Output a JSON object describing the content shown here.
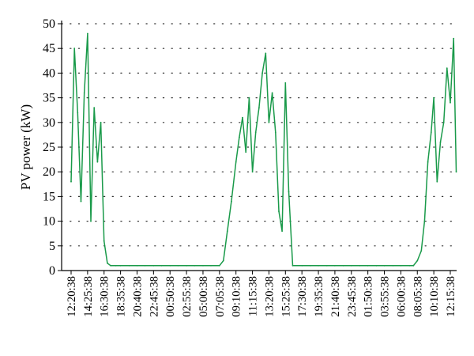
{
  "chart_data": {
    "type": "line",
    "title": "",
    "xlabel": "",
    "ylabel": "PV power (kW)",
    "ylim": [
      0,
      50
    ],
    "yticks": [
      0,
      5,
      10,
      15,
      20,
      25,
      30,
      35,
      40,
      45,
      50
    ],
    "x_tick_labels": [
      "12:20:38",
      "14:25:38",
      "16:30:38",
      "18:35:38",
      "20:40:38",
      "22:45:38",
      "00:50:38",
      "02:55:38",
      "05:00:38",
      "07:05:38",
      "09:10:38",
      "11:15:38",
      "13:20:38",
      "15:25:38",
      "17:30:38",
      "19:35:38",
      "21:40:38",
      "23:45:38",
      "01:50:38",
      "03:55:38",
      "06:00:38",
      "08:05:38",
      "10:10:38",
      "12:15:38"
    ],
    "grid": true,
    "series": [
      {
        "color": "#1a9a4a",
        "x": [
          "12:20:38",
          "12:45:38",
          "13:10:38",
          "13:35:38",
          "14:00:38",
          "14:25:38",
          "14:50:38",
          "15:15:38",
          "15:40:38",
          "16:05:38",
          "16:30:38",
          "16:55:38",
          "17:20:38",
          "18:00:38",
          "18:35:38",
          "19:40:38",
          "20:40:38",
          "21:40:38",
          "22:45:38",
          "23:45:38",
          "00:50:38",
          "01:50:38",
          "02:55:38",
          "03:55:38",
          "05:00:38",
          "06:00:38",
          "07:05:38",
          "07:35:38",
          "08:05:38",
          "08:35:38",
          "09:10:38",
          "09:35:38",
          "10:00:38",
          "10:25:38",
          "10:50:38",
          "11:15:38",
          "11:40:38",
          "12:05:38",
          "12:30:38",
          "12:55:38",
          "13:20:38",
          "13:45:38",
          "14:10:38",
          "14:35:38",
          "15:00:38",
          "15:25:38",
          "15:50:38",
          "16:20:38",
          "17:30:38",
          "18:35:38",
          "19:35:38",
          "20:40:38",
          "21:40:38",
          "22:45:38",
          "23:45:38",
          "00:50:38",
          "01:50:38",
          "02:55:38",
          "03:55:38",
          "05:00:38",
          "06:00:38",
          "07:05:38",
          "07:35:38",
          "08:05:38",
          "08:35:38",
          "09:00:38",
          "09:25:38",
          "09:50:38",
          "10:10:38",
          "10:35:38",
          "11:00:38",
          "11:25:38",
          "11:50:38",
          "12:15:38",
          "12:40:38",
          "13:00:38"
        ],
        "y": [
          18,
          45,
          32,
          14,
          36,
          48,
          10,
          33,
          22,
          30,
          6,
          1.5,
          1,
          1,
          1,
          1,
          1,
          1,
          1,
          1,
          1,
          1,
          1,
          1,
          1,
          1,
          1,
          2,
          8,
          14,
          22,
          27,
          31,
          24,
          35,
          20,
          28,
          33,
          40,
          44,
          30,
          36,
          28,
          12,
          8,
          38,
          16,
          1,
          1,
          1,
          1,
          1,
          1,
          1,
          1,
          1,
          1,
          1,
          1,
          1,
          1,
          1,
          1,
          2,
          4,
          10,
          22,
          28,
          35,
          18,
          26,
          30,
          41,
          34,
          47,
          20
        ]
      }
    ]
  }
}
